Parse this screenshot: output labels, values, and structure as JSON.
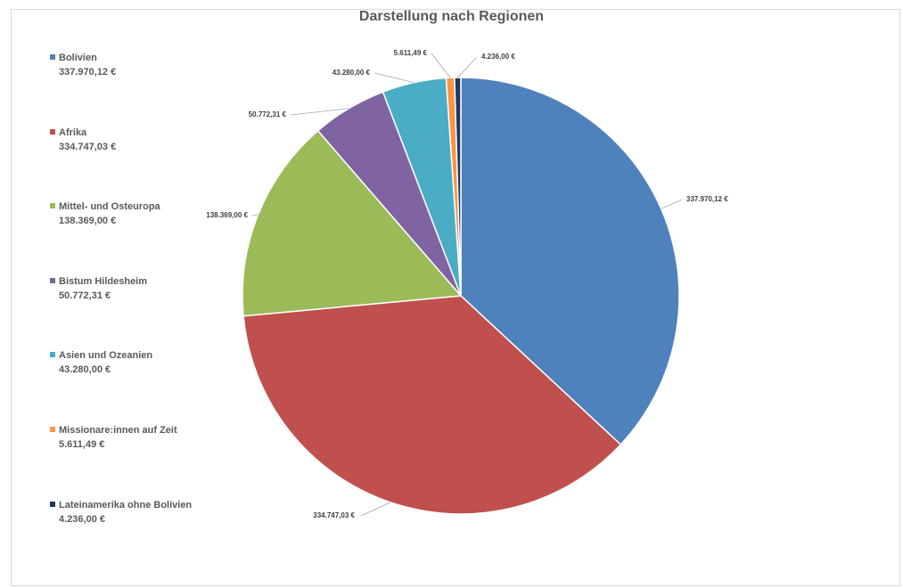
{
  "chart_data": {
    "type": "pie",
    "title": "Darstellung nach Regionen",
    "legend_position": "left",
    "categories": [
      "Bolivien",
      "Afrika",
      "Mittel- und Osteuropa",
      "Bistum Hildesheim",
      "Asien und Ozeanien",
      "Missionare:innen auf Zeit",
      "Lateinamerika ohne Bolivien"
    ],
    "values": [
      337970.12,
      334747.03,
      138369.0,
      50772.31,
      43280.0,
      5611.49,
      4236.0
    ],
    "value_labels": [
      "337.970,12 €",
      "334.747,03 €",
      "138.369,00 €",
      "50.772,31 €",
      "43.280,00 €",
      "5.611,49 €",
      "4.236,00 €"
    ],
    "colors": [
      "#4f81bd",
      "#c0504d",
      "#9bbb59",
      "#8064a2",
      "#4bacc6",
      "#f79646",
      "#1f3864"
    ]
  }
}
